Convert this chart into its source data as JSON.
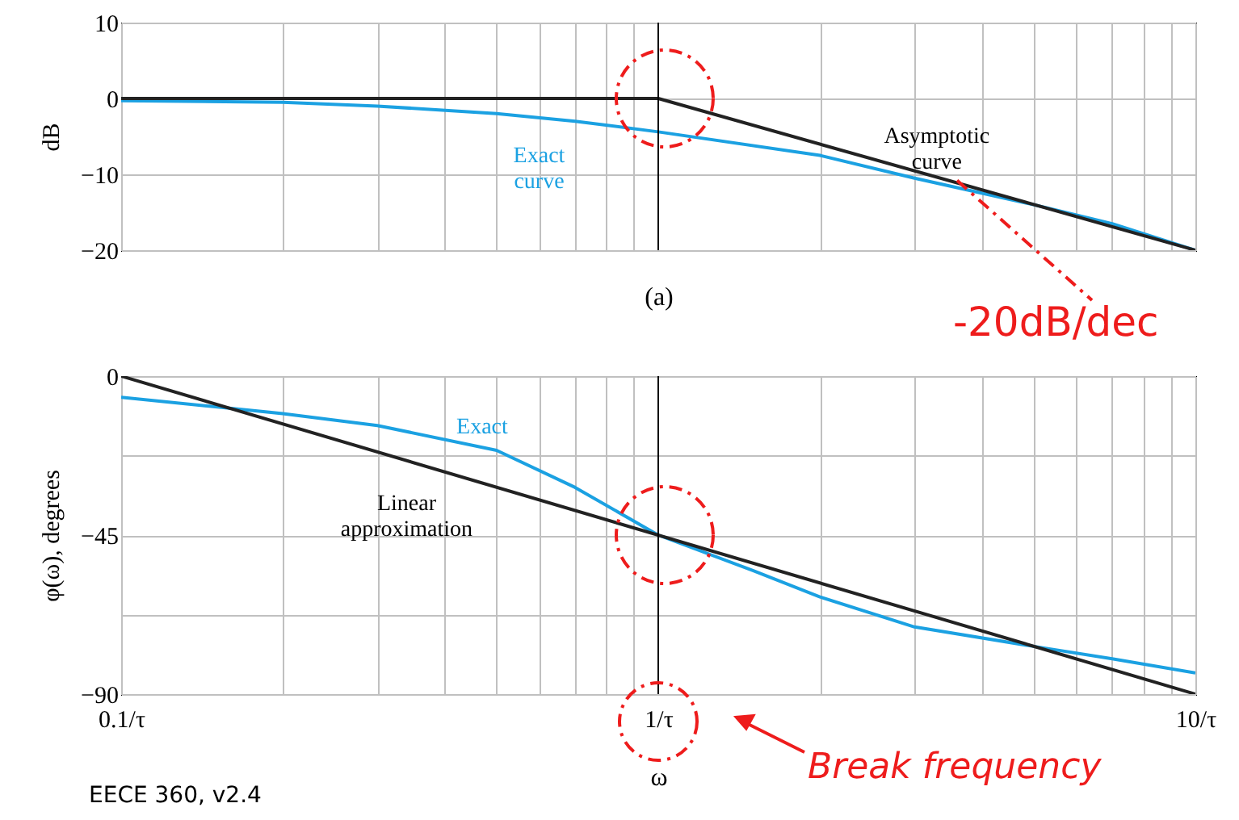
{
  "chart_data": [
    {
      "type": "line",
      "ylabel": "dB",
      "xlabel": "(a)",
      "log": "x",
      "grid": true,
      "legend": false,
      "tick_labels": "y",
      "xlim": [
        0.1,
        10
      ],
      "ylim": [
        -20,
        10
      ],
      "yticks": [
        10,
        0,
        -10,
        -20
      ],
      "xticks": [
        {
          "value": 0.1,
          "label": null
        },
        {
          "value": 0.2,
          "label": null
        },
        {
          "value": 0.3,
          "label": null
        },
        {
          "value": 0.4,
          "label": null
        },
        {
          "value": 0.5,
          "label": null
        },
        {
          "value": 0.6,
          "label": null
        },
        {
          "value": 0.7,
          "label": null
        },
        {
          "value": 0.8,
          "label": null
        },
        {
          "value": 0.9,
          "label": null
        },
        {
          "value": 1,
          "label": null
        },
        {
          "value": 2,
          "label": null
        },
        {
          "value": 3,
          "label": null
        },
        {
          "value": 4,
          "label": null
        },
        {
          "value": 5,
          "label": null
        },
        {
          "value": 6,
          "label": null
        },
        {
          "value": 7,
          "label": null
        },
        {
          "value": 8,
          "label": null
        },
        {
          "value": 9,
          "label": null
        },
        {
          "value": 10,
          "label": null
        }
      ],
      "ref_lines": [
        {
          "axis": "x",
          "value": 1,
          "color": "#000000"
        }
      ],
      "series": [
        {
          "name": "Exact curve",
          "color": "#1ba1e2",
          "x": [
            0.1,
            0.2,
            0.3,
            0.5,
            0.7,
            1,
            2,
            3,
            5,
            7,
            10
          ],
          "values": [
            -0.3,
            -0.5,
            -1,
            -2,
            -3,
            -4.4,
            -7.5,
            -10.5,
            -14,
            -16.5,
            -20
          ]
        },
        {
          "name": "Asymptotic curve",
          "color": "#222222",
          "x": [
            0.1,
            1,
            10
          ],
          "values": [
            0,
            0,
            -20
          ]
        }
      ],
      "annotations": [
        {
          "text": "-20dB/dec",
          "x": 3.6,
          "y": -10.8
        }
      ]
    },
    {
      "type": "line",
      "ylabel": "φ(ω), degrees",
      "xlabel": "ω",
      "log": "x",
      "grid": true,
      "legend": false,
      "xlim": [
        0.1,
        10
      ],
      "ylim": [
        -90,
        0
      ],
      "yticks": [
        0,
        {
          "value": -22.5,
          "label": null
        },
        -45,
        {
          "value": -67.5,
          "label": null
        },
        -90
      ],
      "xticks": [
        {
          "value": 0.1,
          "label": "0.1/τ"
        },
        {
          "value": 0.2,
          "label": null
        },
        {
          "value": 0.3,
          "label": null
        },
        {
          "value": 0.4,
          "label": null
        },
        {
          "value": 0.5,
          "label": null
        },
        {
          "value": 0.6,
          "label": null
        },
        {
          "value": 0.7,
          "label": null
        },
        {
          "value": 0.8,
          "label": null
        },
        {
          "value": 0.9,
          "label": null
        },
        {
          "value": 1,
          "label": "1/τ"
        },
        {
          "value": 2,
          "label": null
        },
        {
          "value": 3,
          "label": null
        },
        {
          "value": 4,
          "label": null
        },
        {
          "value": 5,
          "label": null
        },
        {
          "value": 6,
          "label": null
        },
        {
          "value": 7,
          "label": null
        },
        {
          "value": 8,
          "label": null
        },
        {
          "value": 9,
          "label": null
        },
        {
          "value": 10,
          "label": "10/τ"
        }
      ],
      "ref_lines": [
        {
          "axis": "x",
          "value": 1,
          "color": "#000000"
        }
      ],
      "series": [
        {
          "name": "Exact",
          "color": "#1ba1e2",
          "x": [
            0.1,
            0.2,
            0.3,
            0.5,
            0.7,
            1,
            1.5,
            2,
            3,
            5,
            7,
            10
          ],
          "values": [
            -6,
            -10.6,
            -14,
            -21,
            -31.5,
            -45,
            -55,
            -62.5,
            -71,
            -76.5,
            -80,
            -84
          ]
        },
        {
          "name": "Linear approximation",
          "color": "#222222",
          "x": [
            0.1,
            10
          ],
          "values": [
            0,
            -90
          ]
        }
      ],
      "annotations": [
        "Break frequency",
        "EECE 360, v2.4"
      ]
    }
  ]
}
